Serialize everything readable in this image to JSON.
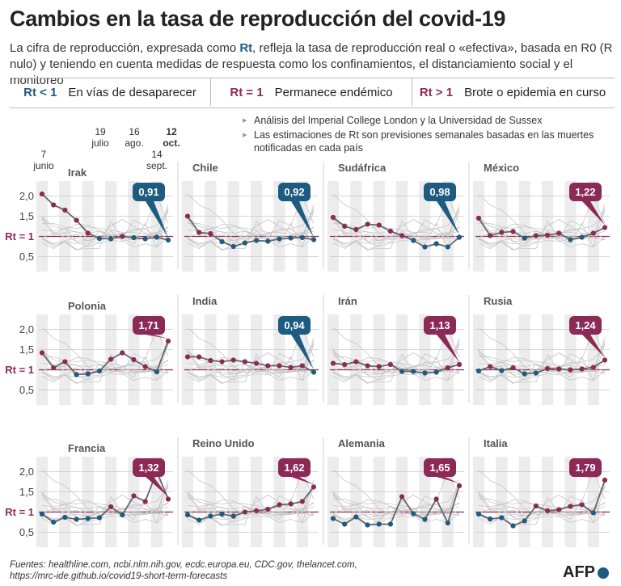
{
  "title": "Cambios en la tasa de reproducción del covid-19",
  "subtitle": {
    "part1": "La cifra de reproducción, expresada como ",
    "rt": "Rt",
    "part2": ", refleja la tasa de reproducción real o «efectiva», basada en R0 (R nulo) y teniendo en cuenta medidas de respuesta como los confinamientos, el distanciamiento social y el monitoreo"
  },
  "legend": [
    {
      "key": "Rt < 1",
      "label": "En vías de desaparecer",
      "color": "#1e5b80"
    },
    {
      "key": "Rt = 1",
      "label": "Permanece endémico",
      "color": "#8c2a57"
    },
    {
      "key": "Rt > 1",
      "label": "Brote o epidemia en curso",
      "color": "#8c2a57"
    }
  ],
  "dates": {
    "d1": {
      "day": "7",
      "month": "junio"
    },
    "d2": {
      "day": "19",
      "month": "julio"
    },
    "d3": {
      "day": "16",
      "month": "ago."
    },
    "d4": {
      "day": "14",
      "month": "sept."
    },
    "d5": {
      "day": "12",
      "month": "oct."
    }
  },
  "notes": [
    "Análisis del Imperial College London y la Universidad de Sussex",
    "Las estimaciones de Rt son previsiones semanales basadas en las muertes notificadas en cada país"
  ],
  "colors": {
    "blue": "#1e5b80",
    "purple": "#8c2a57",
    "gray": "#666666",
    "grid": "#bbbbbb"
  },
  "chart_data": {
    "type": "line",
    "y_ticks": [
      "2,0",
      "1,5",
      "Rt = 1",
      "0,5"
    ],
    "y_tick_values": [
      2.0,
      1.5,
      1.0,
      0.5
    ],
    "ylim": [
      0.25,
      2.25
    ],
    "x_periods": 12,
    "panels": [
      {
        "country": "Irak",
        "last_label": "0,91",
        "values": [
          2.05,
          1.78,
          1.65,
          1.4,
          1.08,
          0.95,
          0.94,
          1.0,
          0.97,
          0.94,
          0.98,
          0.91
        ]
      },
      {
        "country": "Chile",
        "last_label": "0,92",
        "values": [
          1.5,
          1.1,
          1.07,
          0.87,
          0.75,
          0.84,
          0.9,
          0.88,
          0.94,
          0.96,
          0.97,
          0.92
        ]
      },
      {
        "country": "Sudáfrica",
        "last_label": "0,98",
        "values": [
          1.47,
          1.25,
          1.17,
          1.3,
          1.28,
          1.13,
          1.02,
          0.9,
          0.74,
          0.82,
          0.74,
          0.98
        ]
      },
      {
        "country": "México",
        "last_label": "1,22",
        "values": [
          1.45,
          1.02,
          1.1,
          1.12,
          0.96,
          1.02,
          1.03,
          1.08,
          0.92,
          0.98,
          1.08,
          1.22
        ]
      },
      {
        "country": "Polonia",
        "last_label": "1,71",
        "values": [
          1.42,
          1.05,
          1.2,
          0.88,
          0.9,
          0.97,
          1.26,
          1.42,
          1.25,
          1.08,
          0.95,
          1.71
        ]
      },
      {
        "country": "India",
        "last_label": "0,94",
        "values": [
          1.32,
          1.32,
          1.23,
          1.2,
          1.24,
          1.2,
          1.16,
          1.1,
          1.1,
          1.06,
          1.1,
          0.94
        ]
      },
      {
        "country": "Irán",
        "last_label": "1,13",
        "values": [
          1.16,
          1.13,
          1.2,
          1.1,
          1.08,
          1.13,
          0.96,
          0.96,
          0.92,
          0.94,
          1.05,
          1.13
        ]
      },
      {
        "country": "Rusia",
        "last_label": "1,24",
        "values": [
          0.97,
          1.08,
          0.98,
          1.05,
          0.9,
          0.92,
          1.03,
          1.02,
          1.0,
          1.02,
          1.06,
          1.24
        ]
      },
      {
        "country": "Francia",
        "last_label": "1,32",
        "values": [
          0.95,
          0.75,
          0.87,
          0.82,
          0.84,
          0.86,
          1.13,
          0.93,
          1.4,
          1.26,
          2.0,
          1.32
        ]
      },
      {
        "country": "Reino Unido",
        "last_label": "1,62",
        "values": [
          0.93,
          0.8,
          0.9,
          0.95,
          0.9,
          1.0,
          1.03,
          1.07,
          1.18,
          1.2,
          1.26,
          1.62
        ]
      },
      {
        "country": "Alemania",
        "last_label": "1,65",
        "values": [
          0.84,
          0.7,
          0.88,
          0.68,
          0.7,
          0.7,
          1.38,
          0.96,
          0.82,
          1.32,
          0.73,
          1.65
        ]
      },
      {
        "country": "Italia",
        "last_label": "1,79",
        "values": [
          0.95,
          0.83,
          0.86,
          0.66,
          0.78,
          1.15,
          1.03,
          1.06,
          1.14,
          1.18,
          0.98,
          1.79
        ]
      }
    ]
  },
  "source": {
    "line1": "Fuentes: healthline.com, ncbi.nlm.nih.gov, ecdc.europa.eu, CDC.gov, thelancet.com,",
    "line2": "https://mrc-ide.github.io/covid19-short-term-forecasts"
  },
  "logo": "AFP"
}
